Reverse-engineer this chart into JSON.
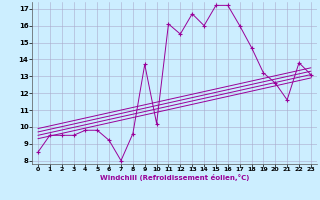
{
  "xlabel": "Windchill (Refroidissement éolien,°C)",
  "bg_color": "#cceeff",
  "line_color": "#990099",
  "grid_color": "#aaaacc",
  "xmin": 0,
  "xmax": 23,
  "ymin": 8,
  "ymax": 17,
  "main_x": [
    0,
    1,
    2,
    3,
    4,
    5,
    6,
    7,
    8,
    9,
    10,
    11,
    12,
    13,
    14,
    15,
    16,
    17,
    18,
    19,
    20,
    21,
    22,
    23
  ],
  "main_y": [
    8.5,
    9.5,
    9.5,
    9.5,
    9.8,
    9.8,
    9.2,
    8.0,
    9.6,
    13.7,
    10.2,
    16.1,
    15.5,
    16.7,
    16.0,
    17.2,
    17.2,
    16.0,
    14.7,
    13.2,
    12.6,
    11.6,
    13.8,
    13.1
  ],
  "line2_x": [
    0,
    23
  ],
  "line2_y": [
    9.3,
    12.9
  ],
  "line3_x": [
    0,
    23
  ],
  "line3_y": [
    9.5,
    13.1
  ],
  "line4_x": [
    0,
    23
  ],
  "line4_y": [
    9.7,
    13.3
  ],
  "line5_x": [
    0,
    23
  ],
  "line5_y": [
    9.9,
    13.5
  ]
}
